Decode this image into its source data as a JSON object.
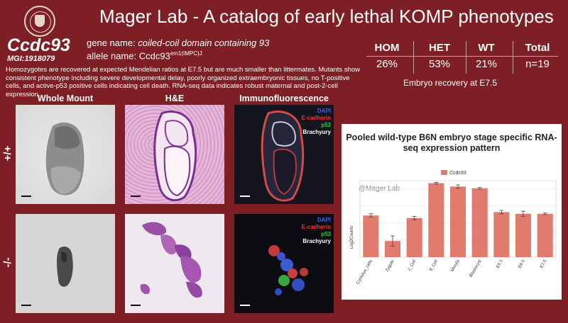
{
  "header": {
    "title": "Mager Lab - A catalog of early lethal KOMP phenotypes"
  },
  "gene": {
    "symbol": "Ccdc93",
    "mgi": "MGI:1918079",
    "name_label": "gene name:",
    "name": "coiled-coil domain containing 93",
    "allele_label": "allele name:",
    "allele_base": "Ccdc93",
    "allele_sup": "em1(IMPC)J"
  },
  "description": "Homozygotes are recovered at expected Mendelian ratios at E7.5 but are much smaller than littermates. Mutants show consistent phenotype including severe developmental delay, poorly organized extraembryonic tissues, no T-positive cells, and active-p53 positive cells indicating cell death. RNA-seq data indicates robust maternal and post-2-cell expression.",
  "stats": {
    "items": [
      {
        "label": "HOM",
        "value": "26%"
      },
      {
        "label": "HET",
        "value": "53%"
      },
      {
        "label": "WT",
        "value": "21%"
      },
      {
        "label": "Total",
        "value": "n=19"
      }
    ],
    "caption": "Embryo recovery at E7.5"
  },
  "columns": [
    "Whole Mount",
    "H&E",
    "Immunofluorescence"
  ],
  "rows": [
    "+/+",
    "-/-"
  ],
  "if_labels": [
    {
      "text": "DAPI",
      "color": "#3b5bff"
    },
    {
      "text": "E-cadherin",
      "color": "#ff2b2b"
    },
    {
      "text": "p53",
      "color": "#2bd02b"
    },
    {
      "text": "Brachyury",
      "color": "#ffffff"
    }
  ],
  "chart_data": {
    "type": "bar",
    "title": "Pooled wild-type B6N embryo stage specific RNA-seq expression pattern",
    "ylabel": "Log2Counts",
    "watermark": "@Mager Lab",
    "legend": "Ccdc93",
    "legend_position": "top-center",
    "color": "#e07b6e",
    "ylim": [
      0,
      9
    ],
    "grid": true,
    "categories": [
      "Cumulus_cells",
      "Zygote",
      "2_Cell",
      "8_Cell",
      "Morula",
      "Blastocyst",
      "E5.5",
      "E6.5",
      "E7.5"
    ],
    "values": [
      4.9,
      1.9,
      4.6,
      8.7,
      8.3,
      8.1,
      5.3,
      5.1,
      5.1
    ],
    "errors": [
      0.2,
      0.6,
      0.2,
      0.1,
      0.2,
      0.1,
      0.2,
      0.3,
      0.1
    ]
  }
}
